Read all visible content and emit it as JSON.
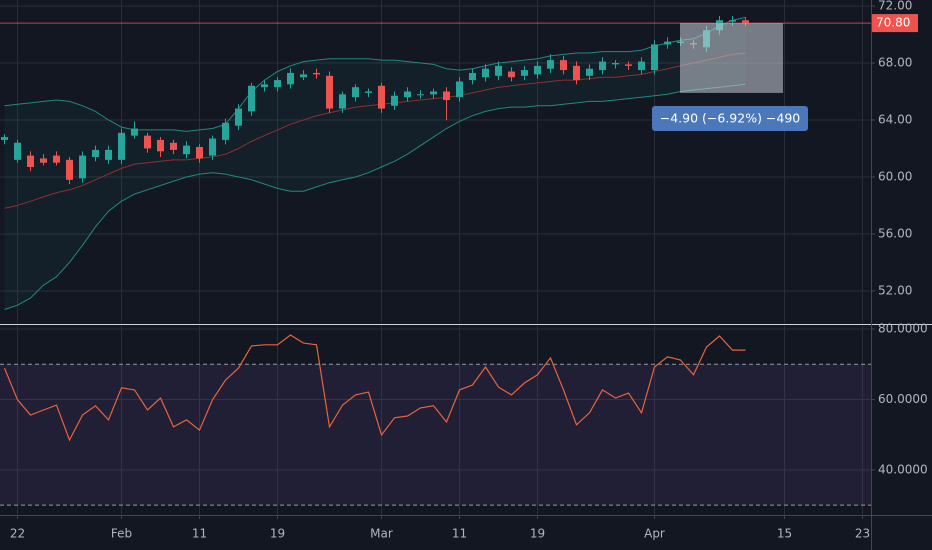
{
  "chart_data": [
    {
      "type": "candlestick",
      "ylim": [
        49.75,
        72.42
      ],
      "yticks": [
        {
          "value": 52,
          "label": "52.00"
        },
        {
          "value": 56,
          "label": "56.00"
        },
        {
          "value": 60,
          "label": "60.00"
        },
        {
          "value": 64,
          "label": "64.00"
        },
        {
          "value": 68,
          "label": "68.00"
        },
        {
          "value": 72,
          "label": "72.00"
        }
      ],
      "up_color": "#26a69a",
      "down_color": "#ef5350",
      "grid": true,
      "open": [
        62.6,
        61.2,
        61.5,
        61.3,
        61.5,
        61.2,
        59.9,
        61.4,
        61.2,
        61.2,
        62.9,
        62.9,
        62.6,
        62.4,
        61.6,
        62.1,
        61.5,
        62.6,
        63.6,
        64.6,
        66.3,
        66.3,
        66.5,
        67.0,
        67.3,
        67.1,
        64.8,
        65.6,
        65.9,
        66.4,
        65.0,
        65.6,
        65.8,
        65.8,
        66.0,
        65.6,
        66.8,
        67.0,
        67.1,
        67.4,
        67.1,
        67.2,
        67.6,
        68.2,
        67.8,
        67.1,
        67.5,
        67.9,
        67.9,
        67.5,
        67.5,
        69.3,
        69.4,
        69.4,
        69.1,
        70.3,
        70.9,
        71.0,
        null,
        null,
        null,
        null,
        null,
        null,
        null,
        null,
        null
      ],
      "high": [
        63.0,
        62.6,
        61.8,
        61.6,
        61.8,
        61.4,
        61.8,
        62.2,
        62.2,
        63.4,
        63.9,
        63.1,
        62.8,
        62.6,
        62.5,
        62.3,
        62.9,
        64.1,
        65.1,
        66.6,
        66.8,
        67.0,
        67.6,
        67.5,
        67.6,
        67.4,
        66.0,
        66.5,
        66.2,
        66.6,
        66.0,
        66.3,
        66.1,
        66.2,
        66.3,
        67.0,
        67.6,
        67.9,
        68.1,
        67.7,
        67.8,
        68.1,
        68.6,
        68.5,
        68.1,
        67.9,
        68.4,
        68.2,
        68.1,
        68.4,
        69.6,
        69.8,
        69.8,
        69.6,
        70.6,
        71.3,
        71.3,
        71.2,
        null,
        null,
        null,
        null,
        null,
        null,
        null,
        null,
        null
      ],
      "low": [
        62.3,
        61.0,
        60.4,
        60.8,
        60.8,
        59.5,
        59.6,
        61.1,
        60.9,
        60.9,
        62.7,
        61.7,
        61.4,
        61.6,
        61.3,
        61.0,
        61.2,
        62.3,
        63.3,
        64.3,
        66.0,
        66.0,
        66.2,
        66.8,
        66.9,
        64.5,
        64.5,
        65.3,
        65.6,
        64.5,
        64.7,
        65.3,
        65.5,
        65.5,
        64.0,
        65.3,
        66.5,
        66.7,
        66.8,
        66.7,
        66.8,
        66.9,
        67.3,
        67.2,
        66.5,
        66.8,
        67.2,
        67.6,
        67.5,
        67.2,
        67.2,
        69.0,
        69.2,
        69.0,
        68.8,
        70.0,
        70.6,
        70.6,
        null,
        null,
        null,
        null,
        null,
        null,
        null,
        null,
        null
      ],
      "close": [
        62.8,
        62.4,
        60.7,
        61.0,
        61.0,
        59.8,
        61.5,
        61.9,
        61.9,
        63.1,
        63.4,
        62.0,
        61.8,
        61.9,
        62.2,
        61.3,
        62.7,
        63.8,
        64.8,
        66.4,
        66.5,
        66.8,
        67.3,
        67.2,
        67.2,
        64.8,
        65.8,
        66.3,
        66.0,
        64.8,
        65.7,
        66.0,
        65.8,
        66.0,
        65.4,
        66.7,
        67.3,
        67.6,
        67.8,
        67.0,
        67.5,
        67.8,
        68.2,
        67.5,
        66.8,
        67.6,
        68.1,
        68.0,
        67.8,
        68.1,
        69.3,
        69.5,
        69.5,
        69.3,
        70.3,
        71.0,
        71.0,
        70.8,
        null,
        null,
        null,
        null,
        null,
        null,
        null,
        null,
        null
      ],
      "bollinger": {
        "color": "#1f8a80",
        "basis_color": "#8d2f31",
        "fill": "rgba(38,166,154,0.06)",
        "upper": [
          65.0,
          65.1,
          65.2,
          65.3,
          65.4,
          65.3,
          65.0,
          64.6,
          64.0,
          63.5,
          63.3,
          63.3,
          63.3,
          63.3,
          63.2,
          63.3,
          63.4,
          63.7,
          64.8,
          66.0,
          66.8,
          67.4,
          67.8,
          68.1,
          68.2,
          68.3,
          68.3,
          68.3,
          68.3,
          68.2,
          68.2,
          68.1,
          68.0,
          67.9,
          67.6,
          67.5,
          67.6,
          67.8,
          68.0,
          68.1,
          68.2,
          68.3,
          68.5,
          68.6,
          68.7,
          68.7,
          68.8,
          68.8,
          68.8,
          68.9,
          69.2,
          69.4,
          69.6,
          69.7,
          70.1,
          70.6,
          71.0,
          71.2,
          null,
          null,
          null,
          null,
          null,
          null,
          null,
          null,
          null
        ],
        "basis": [
          57.8,
          58.0,
          58.3,
          58.6,
          58.9,
          59.1,
          59.4,
          59.8,
          60.2,
          60.6,
          60.9,
          61.0,
          61.1,
          61.2,
          61.2,
          61.3,
          61.4,
          61.6,
          62.0,
          62.5,
          62.9,
          63.3,
          63.7,
          64.0,
          64.3,
          64.5,
          64.7,
          64.9,
          65.0,
          65.1,
          65.2,
          65.3,
          65.4,
          65.5,
          65.6,
          65.7,
          65.9,
          66.1,
          66.3,
          66.4,
          66.5,
          66.6,
          66.7,
          66.8,
          66.8,
          66.9,
          67.0,
          67.0,
          67.1,
          67.2,
          67.4,
          67.6,
          67.8,
          68.0,
          68.2,
          68.4,
          68.6,
          68.7,
          null,
          null,
          null,
          null,
          null,
          null,
          null,
          null,
          null
        ],
        "lower": [
          50.7,
          51.0,
          51.5,
          52.4,
          53.0,
          54.0,
          55.2,
          56.5,
          57.6,
          58.3,
          58.8,
          59.1,
          59.4,
          59.7,
          60.0,
          60.2,
          60.3,
          60.2,
          60.0,
          59.8,
          59.5,
          59.2,
          59.0,
          59.0,
          59.3,
          59.6,
          59.8,
          60.0,
          60.3,
          60.7,
          61.1,
          61.6,
          62.2,
          62.8,
          63.4,
          63.9,
          64.3,
          64.6,
          64.8,
          64.9,
          64.9,
          65.0,
          65.0,
          65.1,
          65.2,
          65.3,
          65.3,
          65.4,
          65.5,
          65.6,
          65.7,
          65.8,
          66.0,
          66.1,
          66.2,
          66.3,
          66.4,
          66.5,
          null,
          null,
          null,
          null,
          null,
          null,
          null,
          null,
          null
        ]
      },
      "last_price": {
        "value": 70.8,
        "label": "70.80",
        "color": "#ef5350"
      },
      "measure": {
        "from": 70.8,
        "to": 65.9,
        "label": "−4.90 (−6.92%) −490"
      }
    },
    {
      "type": "line",
      "categories": [
        null,
        "22",
        null,
        null,
        null,
        null,
        null,
        null,
        null,
        "Feb",
        null,
        null,
        null,
        null,
        null,
        "11",
        null,
        null,
        null,
        null,
        null,
        "19",
        null,
        null,
        null,
        null,
        null,
        null,
        null,
        "Mar",
        null,
        null,
        null,
        null,
        null,
        "11",
        null,
        null,
        null,
        null,
        null,
        "19",
        null,
        null,
        null,
        null,
        null,
        null,
        null,
        null,
        "Apr",
        null,
        null,
        null,
        null,
        null,
        null,
        null,
        null,
        null,
        "15",
        null,
        null,
        null,
        null,
        null,
        "23"
      ],
      "ylim": [
        27.2,
        80.85
      ],
      "yticks": [
        {
          "value": 40,
          "label": "40.0000"
        },
        {
          "value": 60,
          "label": "60.0000"
        },
        {
          "value": 80,
          "label": "80.0000"
        }
      ],
      "bands": [
        30,
        70
      ],
      "band_color": "rgba(126,87,194,0.13)",
      "color": "#e8643c",
      "grid": true,
      "values": [
        68.9,
        59.9,
        55.6,
        57.0,
        58.4,
        48.5,
        55.6,
        58.2,
        54.2,
        63.3,
        62.7,
        57.0,
        60.4,
        52.2,
        54.2,
        51.3,
        59.9,
        65.5,
        68.9,
        75.2,
        75.5,
        75.5,
        78.3,
        76.0,
        75.5,
        52.2,
        58.4,
        61.3,
        62.1,
        49.9,
        54.8,
        55.3,
        57.6,
        58.2,
        53.6,
        62.7,
        64.1,
        69.2,
        63.5,
        61.3,
        64.7,
        67.0,
        71.8,
        62.7,
        52.8,
        56.2,
        62.7,
        60.4,
        61.8,
        56.2,
        69.2,
        72.1,
        71.2,
        67.0,
        74.9,
        78.0,
        74.0,
        74.0,
        null,
        null,
        null,
        null,
        null,
        null,
        null,
        null,
        null
      ]
    }
  ]
}
